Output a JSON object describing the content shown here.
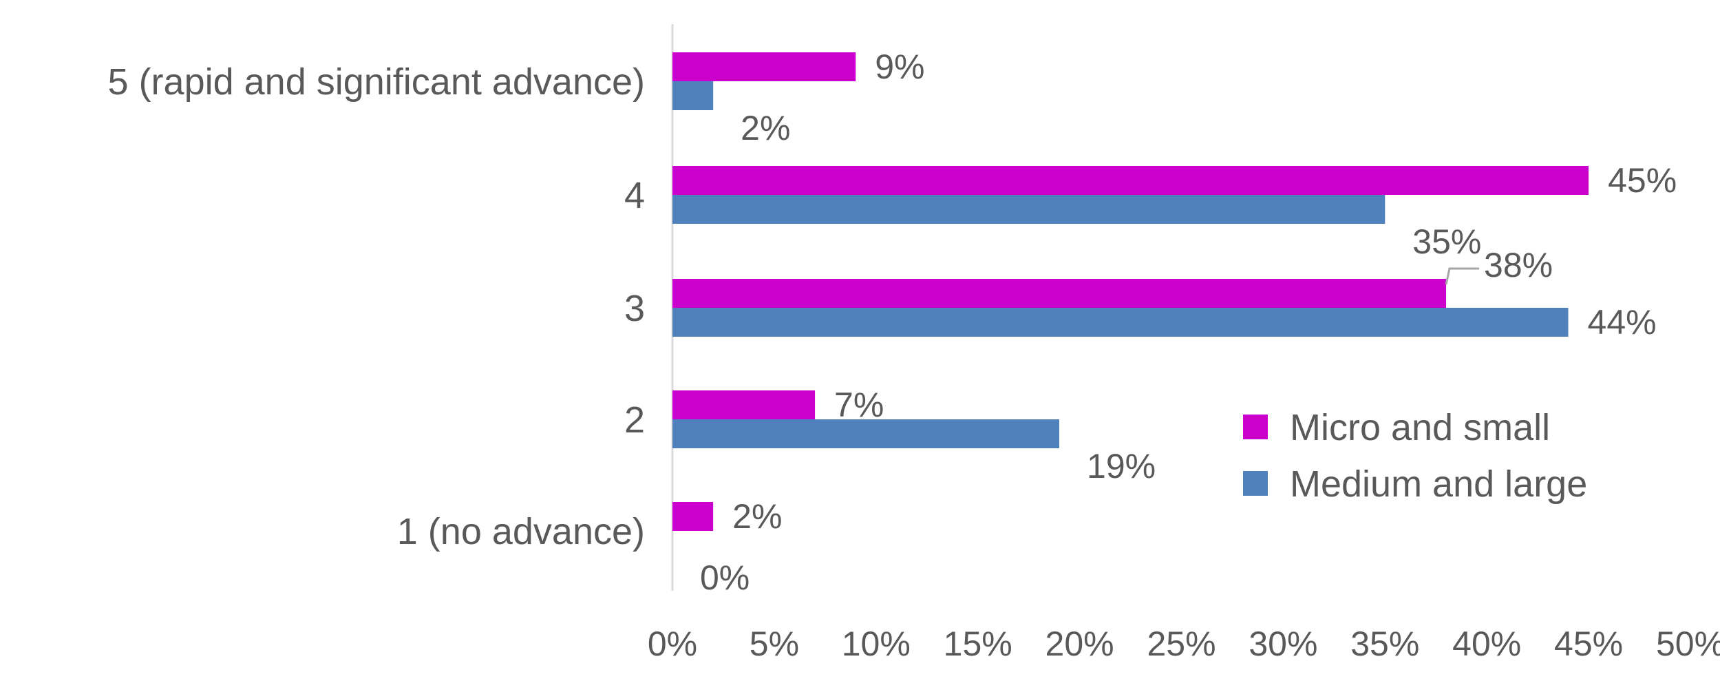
{
  "chart_data": {
    "type": "bar",
    "orientation": "horizontal",
    "categories": [
      "5 (rapid and significant advance)",
      "4",
      "3",
      "2",
      "1 (no advance)"
    ],
    "series": [
      {
        "name": "Micro and small",
        "color": "#CC00CC",
        "values": [
          9,
          45,
          38,
          7,
          2
        ],
        "labels": [
          "9%",
          "45%",
          "38%",
          "7%",
          "2%"
        ]
      },
      {
        "name": "Medium and large",
        "color": "#4F81BD",
        "values": [
          2,
          35,
          44,
          19,
          0
        ],
        "labels": [
          "2%",
          "35%",
          "44%",
          "19%",
          "0%"
        ]
      }
    ],
    "xlim": [
      0,
      50
    ],
    "x_ticks": [
      "0%",
      "5%",
      "10%",
      "15%",
      "20%",
      "25%",
      "30%",
      "35%",
      "40%",
      "45%",
      "50%"
    ],
    "grid": false,
    "legend_position": "right"
  }
}
